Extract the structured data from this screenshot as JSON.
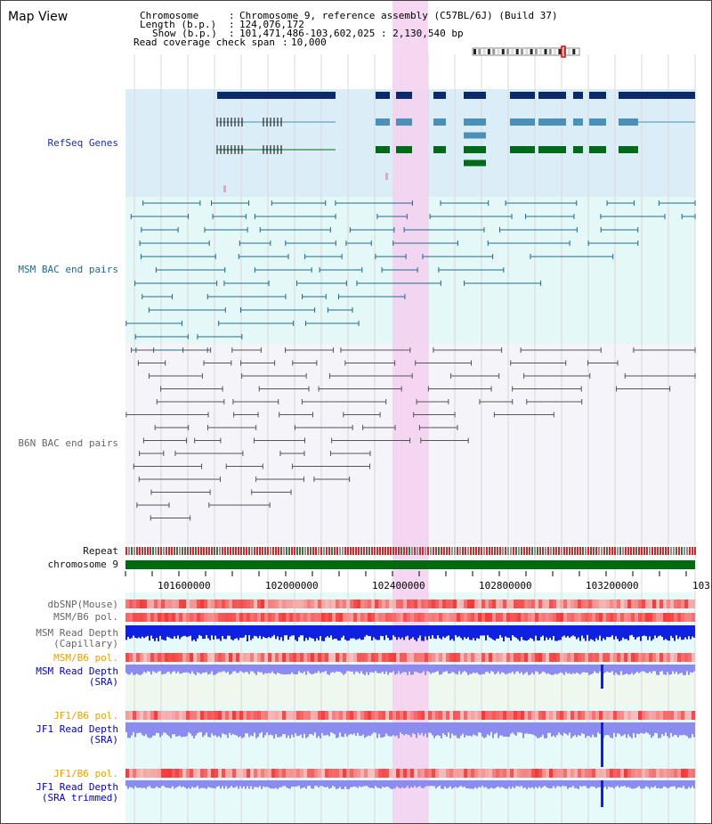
{
  "header": {
    "title": "Map View",
    "chromosome_key": "Chromosome",
    "chromosome_value": "Chromosome 9, reference assembly (C57BL/6J) (Build 37)",
    "length_key": "Length (b.p.)",
    "length_value": "124,076,172",
    "show_key": "Show (b.p.)",
    "show_value": "101,471,486-103,602,025 : 2,130,540 bp",
    "coverage_key": "Read coverage check span",
    "coverage_value": "10,000"
  },
  "tracks": {
    "refseq": "RefSeq Genes",
    "msm_bac": "MSM BAC end pairs",
    "b6n_bac": "B6N BAC end pairs",
    "repeat": "Repeat",
    "chromosome": "chromosome 9",
    "dbsnp": "dbSNP(Mouse)",
    "msm_b6_pol_1": "MSM/B6 pol.",
    "msm_depth_cap_1": "MSM Read Depth",
    "msm_depth_cap_2": "(Capillary)",
    "msm_b6_pol_2": "MSM/B6 pol.",
    "msm_depth_sra_1": "MSM Read Depth",
    "msm_depth_sra_2": "(SRA)",
    "jf1_b6_pol_1": "JF1/B6 pol.",
    "jf1_depth_sra_1": "JF1 Read Depth",
    "jf1_depth_sra_2": "(SRA)",
    "jf1_b6_pol_2": "JF1/B6 pol.",
    "jf1_depth_trim_1": "JF1 Read Depth",
    "jf1_depth_trim_2": "(SRA trimmed)"
  },
  "axis_ticks": [
    "101600000",
    "102000000",
    "102400000",
    "102800000",
    "103200000",
    "103"
  ],
  "colors": {
    "refseq_bg": "#dbeef8",
    "msm_bac_bg": "#e4f8f8",
    "b6n_bac_bg": "#f4f4fa",
    "highlight": "#f5d0f0",
    "gene_dark": "#0a2a6a",
    "gene_mid": "#4a90b8",
    "gene_green": "#006a1a",
    "msm_bac": "#1f6a8a",
    "b6n_bac": "#555555",
    "chromosome_bar": "#006a10",
    "depth_blue": "#1020e0",
    "depth_lavender": "#8c8cf0",
    "pol_red": "#f04040"
  }
}
